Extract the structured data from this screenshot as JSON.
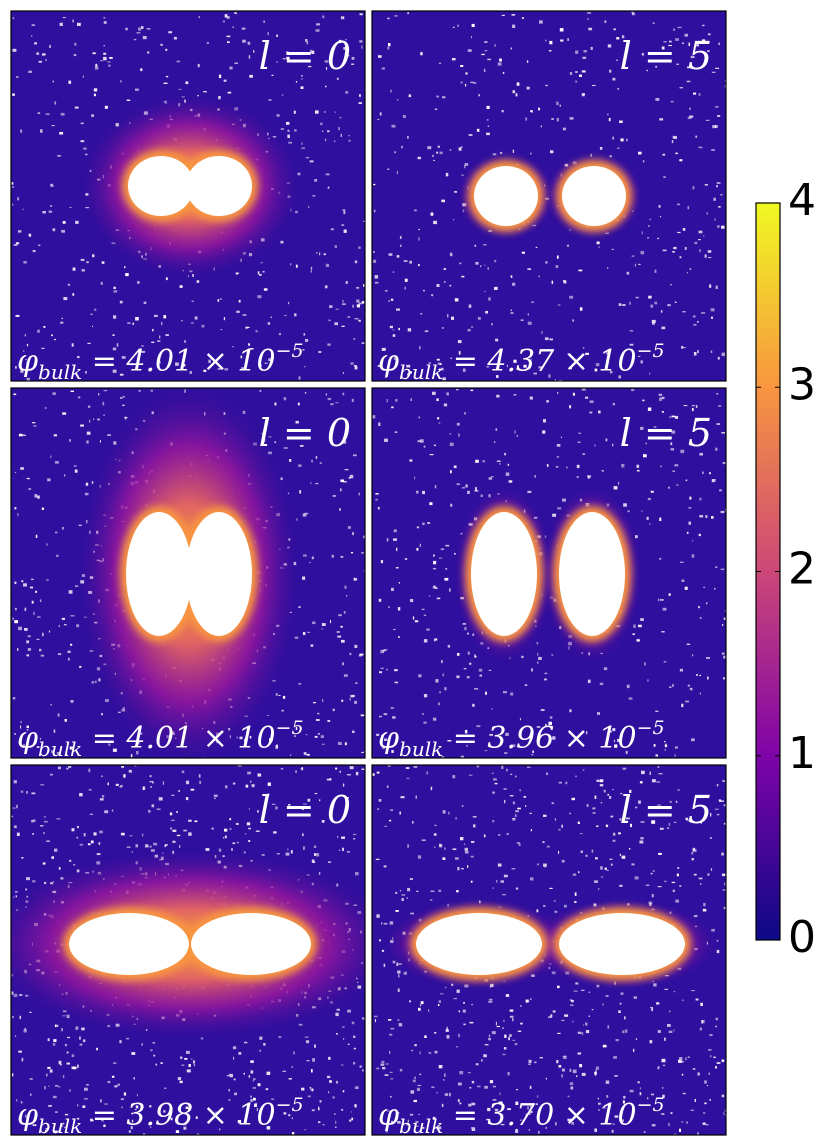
{
  "panels": [
    {
      "label": "l = 0",
      "phi": {
        "symbol": "φ",
        "sub": "bulk",
        "mid": " = 4.01 × 10",
        "sup": "−5"
      }
    },
    {
      "label": "l = 5",
      "phi": {
        "symbol": "φ",
        "sub": "bulk",
        "mid": " = 4.37 × 10",
        "sup": "−5"
      }
    },
    {
      "label": "l = 0",
      "phi": {
        "symbol": "φ",
        "sub": "bulk",
        "mid": " = 4.01 × 10",
        "sup": "−5"
      }
    },
    {
      "label": "l = 5",
      "phi": {
        "symbol": "φ",
        "sub": "bulk",
        "mid": " = 3.96 × 10",
        "sup": "−5"
      }
    },
    {
      "label": "l = 0",
      "phi": {
        "symbol": "φ",
        "sub": "bulk",
        "mid": " = 3.98 × 10",
        "sup": "−5"
      }
    },
    {
      "label": "l = 5",
      "phi": {
        "symbol": "φ",
        "sub": "bulk",
        "mid": " = 3.70 × 10",
        "sup": "−5"
      }
    }
  ],
  "colorbar": {
    "lim": [
      0,
      4
    ],
    "ticks": [
      0,
      1,
      2,
      3,
      4
    ]
  }
}
